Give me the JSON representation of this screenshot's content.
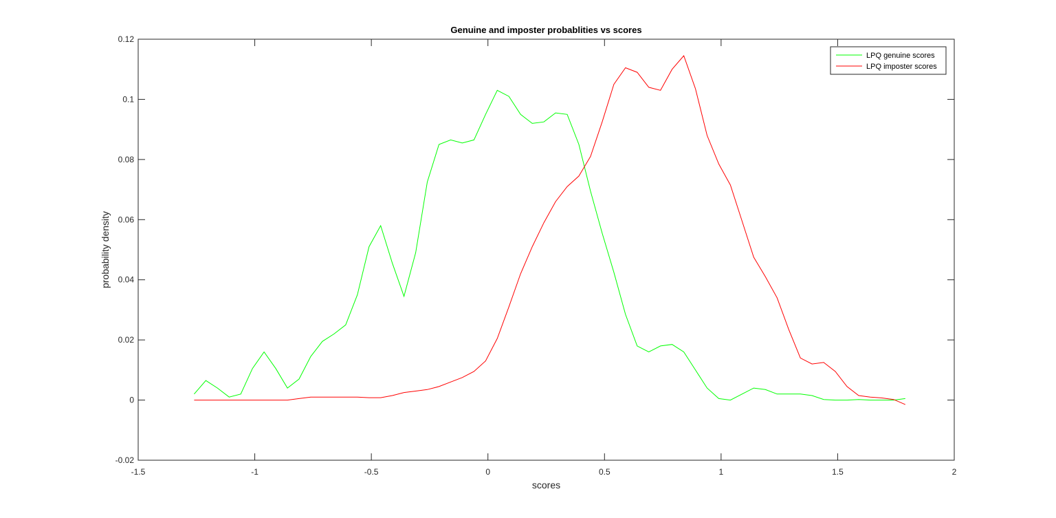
{
  "chart_data": {
    "type": "line",
    "title": "Genuine and imposter probablities vs scores",
    "xlabel": "scores",
    "ylabel": "probability density",
    "xlim": [
      -1.5,
      2
    ],
    "ylim": [
      -0.02,
      0.12
    ],
    "xticks": [
      -1.5,
      -1,
      -0.5,
      0,
      0.5,
      1,
      1.5,
      2
    ],
    "xtick_labels": [
      "-1.5",
      "-1",
      "-0.5",
      "0",
      "0.5",
      "1",
      "1.5",
      "2"
    ],
    "yticks": [
      -0.02,
      0,
      0.02,
      0.04,
      0.06,
      0.08,
      0.1,
      0.12
    ],
    "ytick_labels": [
      "-0.02",
      "0",
      "0.02",
      "0.04",
      "0.06",
      "0.08",
      "0.1",
      "0.12"
    ],
    "grid": false,
    "legend_position": "top-right",
    "series": [
      {
        "name": "LPQ genuine scores",
        "color": "#00ff00",
        "x": [
          -1.26,
          -1.21,
          -1.16,
          -1.11,
          -1.06,
          -1.01,
          -0.96,
          -0.91,
          -0.86,
          -0.81,
          -0.76,
          -0.71,
          -0.66,
          -0.61,
          -0.56,
          -0.51,
          -0.46,
          -0.41,
          -0.36,
          -0.31,
          -0.26,
          -0.21,
          -0.16,
          -0.11,
          -0.06,
          -0.01,
          0.04,
          0.09,
          0.14,
          0.19,
          0.24,
          0.29,
          0.34,
          0.39,
          0.44,
          0.49,
          0.54,
          0.59,
          0.64,
          0.69,
          0.74,
          0.79,
          0.84,
          0.89,
          0.94,
          0.99,
          1.04,
          1.09,
          1.14,
          1.19,
          1.24,
          1.29,
          1.34,
          1.39,
          1.44,
          1.49,
          1.54,
          1.59,
          1.64,
          1.69,
          1.74,
          1.79
        ],
        "y": [
          0.002,
          0.0065,
          0.004,
          0.001,
          0.002,
          0.0105,
          0.016,
          0.0105,
          0.004,
          0.007,
          0.0145,
          0.0195,
          0.022,
          0.025,
          0.035,
          0.051,
          0.058,
          0.0455,
          0.0345,
          0.049,
          0.0725,
          0.085,
          0.0865,
          0.0855,
          0.0865,
          0.095,
          0.103,
          0.101,
          0.095,
          0.092,
          0.0925,
          0.0955,
          0.095,
          0.085,
          0.0695,
          0.0555,
          0.0425,
          0.0285,
          0.018,
          0.016,
          0.018,
          0.0185,
          0.016,
          0.01,
          0.004,
          0.0005,
          0.0,
          0.002,
          0.004,
          0.0035,
          0.002,
          0.002,
          0.002,
          0.0015,
          0.0002,
          0.0,
          0.0,
          0.0002,
          0.0,
          0.0,
          0.0,
          0.0005
        ]
      },
      {
        "name": "LPQ imposter scores",
        "color": "#ff0000",
        "x": [
          -1.26,
          -1.21,
          -1.16,
          -1.11,
          -1.06,
          -1.01,
          -0.96,
          -0.91,
          -0.86,
          -0.81,
          -0.76,
          -0.71,
          -0.66,
          -0.61,
          -0.56,
          -0.51,
          -0.46,
          -0.41,
          -0.36,
          -0.31,
          -0.26,
          -0.21,
          -0.16,
          -0.11,
          -0.06,
          -0.01,
          0.04,
          0.09,
          0.14,
          0.19,
          0.24,
          0.29,
          0.34,
          0.39,
          0.44,
          0.49,
          0.54,
          0.59,
          0.64,
          0.69,
          0.74,
          0.79,
          0.84,
          0.89,
          0.94,
          0.99,
          1.04,
          1.09,
          1.14,
          1.19,
          1.24,
          1.29,
          1.34,
          1.39,
          1.44,
          1.49,
          1.54,
          1.59,
          1.64,
          1.69,
          1.74,
          1.79
        ],
        "y": [
          0.0,
          0.0,
          0.0,
          0.0,
          0.0,
          0.0,
          0.0,
          0.0,
          0.0,
          0.0005,
          0.001,
          0.001,
          0.001,
          0.001,
          0.001,
          0.0008,
          0.0008,
          0.0015,
          0.0025,
          0.003,
          0.0035,
          0.0045,
          0.006,
          0.0075,
          0.0095,
          0.013,
          0.0205,
          0.031,
          0.042,
          0.051,
          0.059,
          0.066,
          0.071,
          0.0745,
          0.081,
          0.0925,
          0.105,
          0.1105,
          0.109,
          0.104,
          0.103,
          0.11,
          0.1145,
          0.1035,
          0.088,
          0.0785,
          0.0715,
          0.0595,
          0.0475,
          0.041,
          0.034,
          0.0235,
          0.014,
          0.012,
          0.0125,
          0.0095,
          0.0045,
          0.0015,
          0.001,
          0.0007,
          0.0002,
          -0.0015
        ]
      }
    ]
  }
}
